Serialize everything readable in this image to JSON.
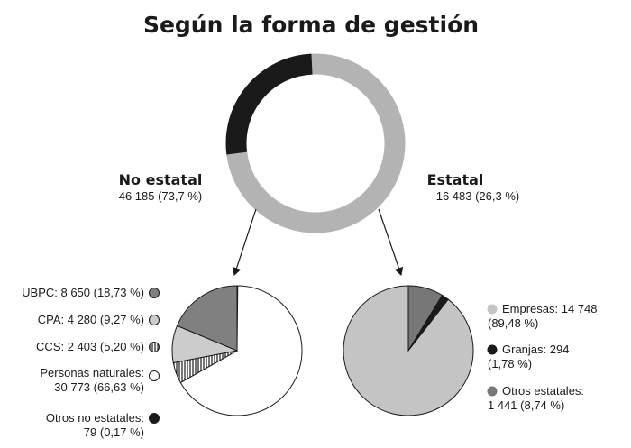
{
  "chart_data": [
    {
      "type": "pie",
      "subtype": "donut",
      "title": "Según la forma de gestión",
      "categories": [
        "No estatal",
        "Estatal"
      ],
      "values": [
        46185,
        16483
      ],
      "value_labels": [
        "46 185 (73,7 %)",
        "16 483 (26,3 %)"
      ],
      "colors": [
        "#b3b3b3",
        "#1a1a1a"
      ]
    },
    {
      "type": "pie",
      "parent": "No estatal",
      "categories": [
        "UBPC",
        "CPA",
        "CCS",
        "Personas naturales",
        "Otros no estatales"
      ],
      "values": [
        8650,
        4280,
        2403,
        30773,
        79
      ],
      "legend_labels": [
        [
          "UBPC: 8 650 (18,73 %)"
        ],
        [
          "CPA: 4 280 (9,27 %)"
        ],
        [
          "CCS: 2 403 (5,20 %)"
        ],
        [
          "Personas naturales:",
          "30 773 (66,63 %)"
        ],
        [
          "Otros no estatales:",
          "79 (0,17 %)"
        ]
      ],
      "colors": [
        "#808080",
        "#cccccc",
        "hatched",
        "#ffffff",
        "#1a1a1a"
      ]
    },
    {
      "type": "pie",
      "parent": "Estatal",
      "categories": [
        "Empresas",
        "Granjas",
        "Otros estatales"
      ],
      "values": [
        14748,
        294,
        1441
      ],
      "legend_labels": [
        [
          "Empresas: 14 748",
          "(89,48 %)"
        ],
        [
          "Granjas: 294",
          "(1,78 %)"
        ],
        [
          "Otros estatales:",
          "1 441 (8,74 %)"
        ]
      ],
      "colors": [
        "#c4c4c4",
        "#1a1a1a",
        "#777777"
      ]
    }
  ]
}
